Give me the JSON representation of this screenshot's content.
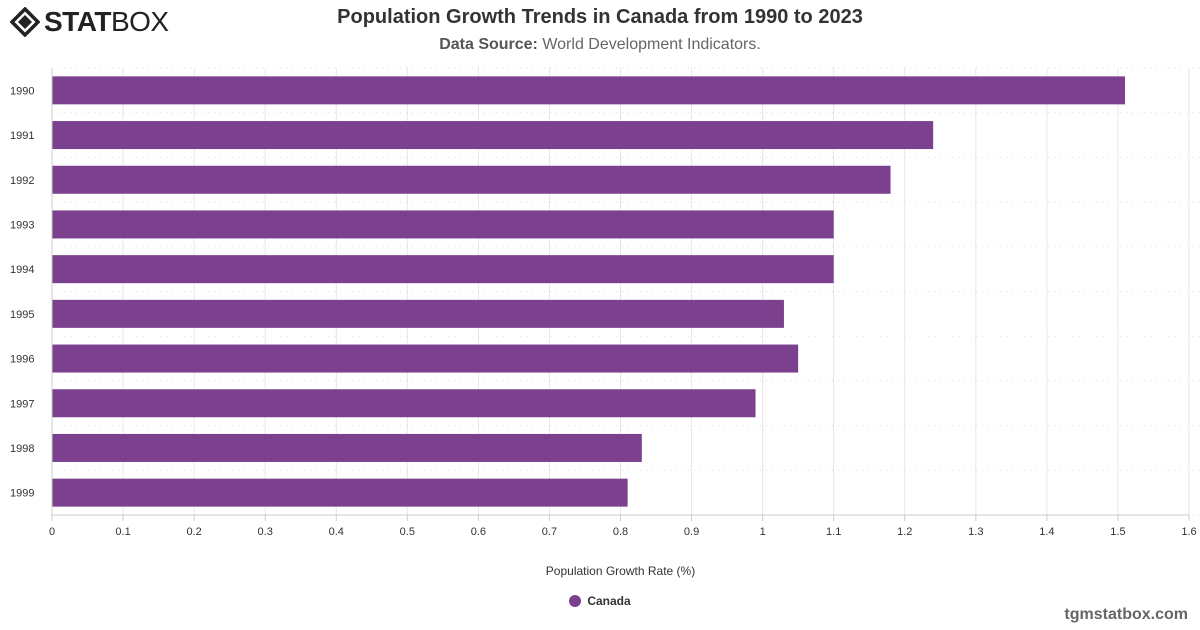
{
  "header": {
    "logo_text": "STATBOX",
    "title": "Population Growth Trends in Canada from 1990 to 2023",
    "subtitle_label": "Data Source:",
    "subtitle_value": "World Development Indicators."
  },
  "watermark": "tgmstatbox.com",
  "colors": {
    "bar": "#7b418e"
  },
  "chart_data": {
    "type": "bar",
    "orientation": "horizontal",
    "title": "Population Growth Trends in Canada from 1990 to 2023",
    "xlabel": "Population Growth Rate (%)",
    "ylabel": "",
    "categories": [
      "1990",
      "1991",
      "1992",
      "1993",
      "1994",
      "1995",
      "1996",
      "1997",
      "1998",
      "1999"
    ],
    "series": [
      {
        "name": "Canada",
        "values": [
          1.51,
          1.24,
          1.18,
          1.1,
          1.1,
          1.03,
          1.05,
          0.99,
          0.83,
          0.81
        ]
      }
    ],
    "xlim": [
      0,
      1.6
    ],
    "xticks": [
      "0",
      "0.1",
      "0.2",
      "0.3",
      "0.4",
      "0.5",
      "0.6",
      "0.7",
      "0.8",
      "0.9",
      "1",
      "1.1",
      "1.2",
      "1.3",
      "1.4",
      "1.5",
      "1.6"
    ],
    "grid": true,
    "legend": "bottom-center"
  }
}
